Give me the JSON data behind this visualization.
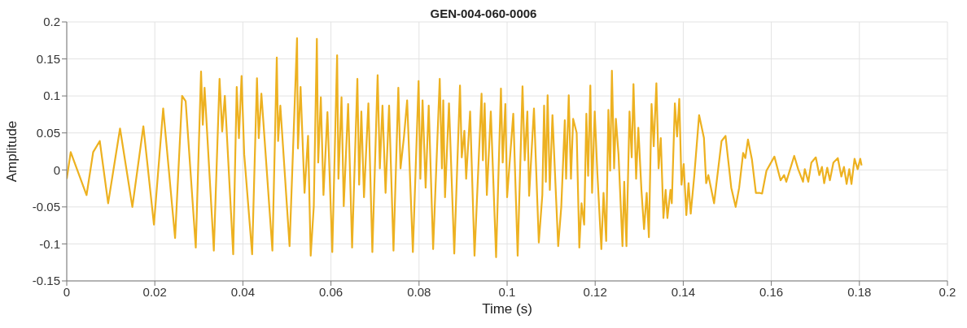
{
  "chart_data": {
    "type": "line",
    "title": "GEN-004-060-0006",
    "xlabel": "Time (s)",
    "ylabel": "Amplitude",
    "xlim": [
      0,
      0.2
    ],
    "xticks": [
      0,
      0.02,
      0.04,
      0.06,
      0.08,
      0.1,
      0.12,
      0.14,
      0.16,
      0.18,
      0.2
    ],
    "ylim": [
      -0.15,
      0.2
    ],
    "yticks": [
      -0.15,
      -0.1,
      -0.05,
      0,
      0.05,
      0.1,
      0.15,
      0.2
    ],
    "grid": true,
    "x": [
      0,
      0.0009,
      0.0045,
      0.006,
      0.0075,
      0.0094,
      0.0121,
      0.0149,
      0.0174,
      0.0198,
      0.0219,
      0.0246,
      0.0262,
      0.027,
      0.0293,
      0.0305,
      0.0309,
      0.0313,
      0.0334,
      0.0347,
      0.0353,
      0.0359,
      0.0378,
      0.0386,
      0.0391,
      0.0397,
      0.0403,
      0.0421,
      0.0432,
      0.0436,
      0.0442,
      0.0467,
      0.0477,
      0.048,
      0.0485,
      0.0506,
      0.0523,
      0.0525,
      0.0531,
      0.054,
      0.0548,
      0.0554,
      0.0561,
      0.0568,
      0.0571,
      0.0577,
      0.0583,
      0.0592,
      0.0603,
      0.0614,
      0.0617,
      0.0624,
      0.0629,
      0.0639,
      0.0648,
      0.066,
      0.0664,
      0.0669,
      0.0675,
      0.0685,
      0.0694,
      0.0706,
      0.0711,
      0.0717,
      0.0724,
      0.0732,
      0.0742,
      0.0753,
      0.0758,
      0.0766,
      0.0773,
      0.0786,
      0.0799,
      0.0803,
      0.0808,
      0.0815,
      0.0822,
      0.0832,
      0.0847,
      0.0852,
      0.0855,
      0.0859,
      0.0868,
      0.088,
      0.0893,
      0.0897,
      0.0903,
      0.0907,
      0.0916,
      0.0926,
      0.0942,
      0.0945,
      0.0949,
      0.0954,
      0.0963,
      0.0975,
      0.0986,
      0.099,
      0.0996,
      0.1,
      0.1014,
      0.1024,
      0.1035,
      0.104,
      0.1046,
      0.105,
      0.1061,
      0.1072,
      0.108,
      0.1084,
      0.1088,
      0.1092,
      0.1097,
      0.1103,
      0.1116,
      0.1123,
      0.1131,
      0.1134,
      0.114,
      0.1145,
      0.115,
      0.1158,
      0.1164,
      0.1169,
      0.1175,
      0.118,
      0.1184,
      0.1189,
      0.1193,
      0.1199,
      0.1205,
      0.1214,
      0.1219,
      0.1225,
      0.123,
      0.1234,
      0.1238,
      0.1243,
      0.1247,
      0.1253,
      0.1262,
      0.1266,
      0.1271,
      0.1278,
      0.1283,
      0.1287,
      0.1293,
      0.1298,
      0.1305,
      0.1311,
      0.1317,
      0.1322,
      0.1328,
      0.1333,
      0.1339,
      0.1344,
      0.1349,
      0.1355,
      0.136,
      0.1364,
      0.1371,
      0.1374,
      0.1381,
      0.1386,
      0.1391,
      0.1396,
      0.1401,
      0.1407,
      0.1412,
      0.1417,
      0.1425,
      0.1436,
      0.1447,
      0.1452,
      0.1457,
      0.147,
      0.1487,
      0.1496,
      0.1509,
      0.1519,
      0.1527,
      0.1536,
      0.1541,
      0.1547,
      0.1556,
      0.1565,
      0.1573,
      0.1579,
      0.1589,
      0.1607,
      0.1621,
      0.1629,
      0.1634,
      0.1652,
      0.1661,
      0.1672,
      0.1676,
      0.1684,
      0.1691,
      0.1701,
      0.1709,
      0.1715,
      0.172,
      0.1727,
      0.1733,
      0.1741,
      0.1751,
      0.1759,
      0.1765,
      0.1771,
      0.1777,
      0.1782,
      0.1789,
      0.1796,
      0.1802,
      0.1805
    ],
    "series": [
      {
        "color": "#edb120",
        "values": [
          -0.012,
          0.024,
          -0.034,
          0.024,
          0.039,
          -0.045,
          0.056,
          -0.05,
          0.059,
          -0.074,
          0.083,
          -0.092,
          0.1,
          0.093,
          -0.105,
          0.133,
          0.061,
          0.111,
          -0.109,
          0.123,
          0.052,
          0.1,
          -0.114,
          0.112,
          0.043,
          0.127,
          0.021,
          -0.114,
          0.124,
          0.043,
          0.103,
          -0.109,
          0.152,
          0.039,
          0.087,
          -0.103,
          0.178,
          0.029,
          0.112,
          -0.031,
          0.046,
          -0.116,
          -0.049,
          0.177,
          0.01,
          0.098,
          -0.034,
          0.078,
          -0.111,
          0.155,
          -0.012,
          0.098,
          -0.049,
          0.089,
          -0.105,
          0.123,
          -0.02,
          0.079,
          -0.037,
          0.09,
          -0.111,
          0.128,
          0.002,
          0.087,
          -0.031,
          0.087,
          -0.109,
          0.111,
          0.002,
          0.046,
          0.094,
          -0.111,
          0.12,
          -0.012,
          0.094,
          -0.024,
          0.087,
          -0.107,
          0.123,
          0.002,
          0.094,
          -0.037,
          0.09,
          -0.113,
          0.114,
          0.017,
          0.053,
          -0.012,
          0.079,
          -0.116,
          0.103,
          0.013,
          0.09,
          -0.034,
          0.079,
          -0.118,
          0.11,
          0.01,
          0.089,
          -0.037,
          0.076,
          -0.116,
          0.113,
          0.013,
          0.079,
          -0.035,
          0.083,
          -0.098,
          -0.034,
          0.087,
          -0.016,
          0.101,
          -0.027,
          0.074,
          -0.103,
          -0.05,
          0.067,
          -0.012,
          0.101,
          -0.012,
          0.069,
          0.05,
          -0.105,
          -0.045,
          -0.074,
          0.076,
          -0.008,
          0.114,
          -0.031,
          0.079,
          -0.005,
          -0.107,
          -0.031,
          -0.096,
          0.081,
          -0.001,
          0.134,
          0.002,
          0.069,
          0.021,
          -0.103,
          -0.016,
          -0.103,
          0.079,
          0.017,
          0.116,
          -0.012,
          0.057,
          -0.027,
          -0.08,
          -0.031,
          -0.091,
          0.089,
          0.032,
          0.117,
          0.002,
          0.043,
          -0.065,
          -0.027,
          -0.065,
          -0.027,
          -0.045,
          0.09,
          0.045,
          0.096,
          -0.02,
          0.008,
          -0.061,
          -0.018,
          -0.059,
          -0.008,
          0.074,
          0.043,
          -0.018,
          -0.007,
          -0.045,
          0.039,
          0.046,
          -0.024,
          -0.05,
          -0.024,
          0.023,
          0.016,
          0.041,
          0.014,
          -0.031,
          -0.031,
          -0.032,
          -0.001,
          0.018,
          -0.014,
          -0.007,
          -0.016,
          0.019,
          0.001,
          -0.016,
          0.001,
          -0.016,
          0.01,
          0.017,
          -0.007,
          0.004,
          -0.018,
          0.003,
          -0.014,
          0.01,
          0.016,
          -0.009,
          0.004,
          -0.019,
          0.001,
          -0.019,
          0.015,
          0.001,
          0.015,
          0.006
        ]
      }
    ]
  }
}
